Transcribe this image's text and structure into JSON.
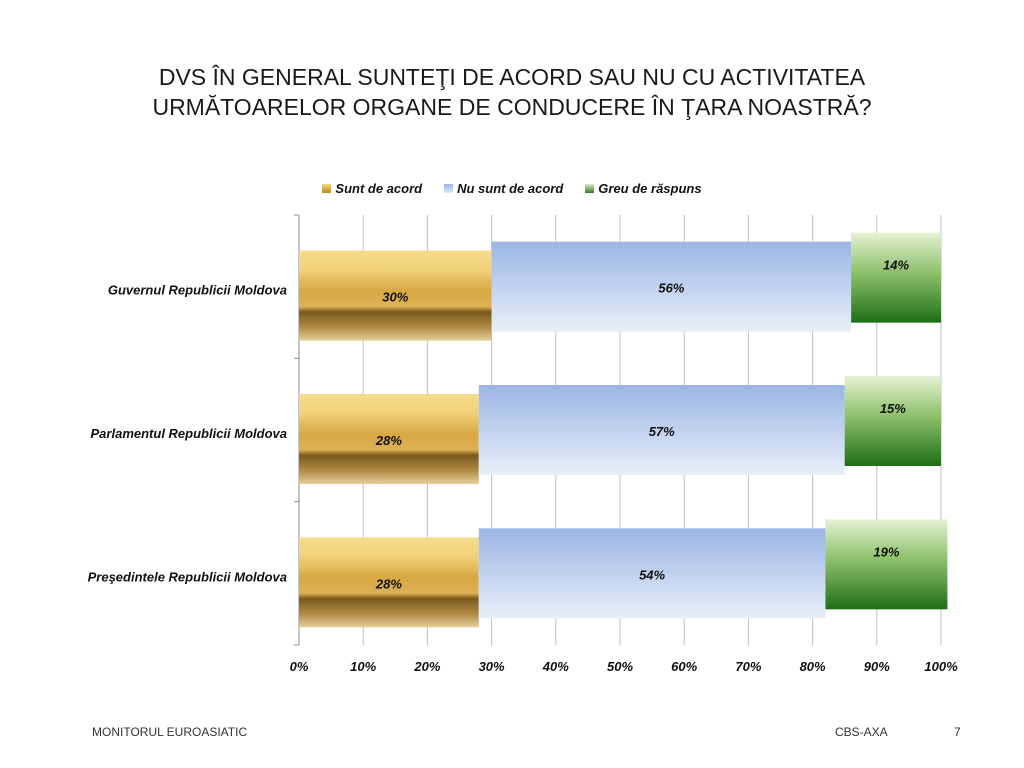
{
  "slide": {
    "title_line1": "DVS  ÎN GENERAL  SUNTEŢI DE ACORD SAU NU CU ACTIVITATEA",
    "title_line2": "URMĂTOARELOR ORGANE DE CONDUCERE ÎN ŢARA NOASTRĂ?",
    "footer_left": "MONITORUL  EUROASIATIC",
    "footer_center": "CBS-AXA",
    "page_number": "7"
  },
  "chart_data": {
    "type": "bar",
    "orientation": "horizontal",
    "stacked": "percent",
    "categories": [
      "Guvernul  Republicii Moldova",
      "Parlamentul Republicii Moldova",
      "Preşedintele Republicii Moldova"
    ],
    "series": [
      {
        "name": "Sunt de acord",
        "values": [
          30,
          28,
          28
        ],
        "labels": [
          "30%",
          "28%",
          "28%"
        ],
        "color": "#c9992d"
      },
      {
        "name": "Nu sunt de acord",
        "values": [
          56,
          57,
          54
        ],
        "labels": [
          "56%",
          "57%",
          "54%"
        ],
        "color": "#a9c1ea"
      },
      {
        "name": "Greu de răspuns",
        "values": [
          14,
          15,
          19
        ],
        "labels": [
          "14%",
          "15%",
          "19%"
        ],
        "color": "#2d7d22"
      }
    ],
    "x_ticks": [
      "0%",
      "10%",
      "20%",
      "30%",
      "40%",
      "50%",
      "60%",
      "70%",
      "80%",
      "90%",
      "100%"
    ],
    "xlim": [
      0,
      100
    ],
    "grid": true,
    "legend_position": "top"
  }
}
